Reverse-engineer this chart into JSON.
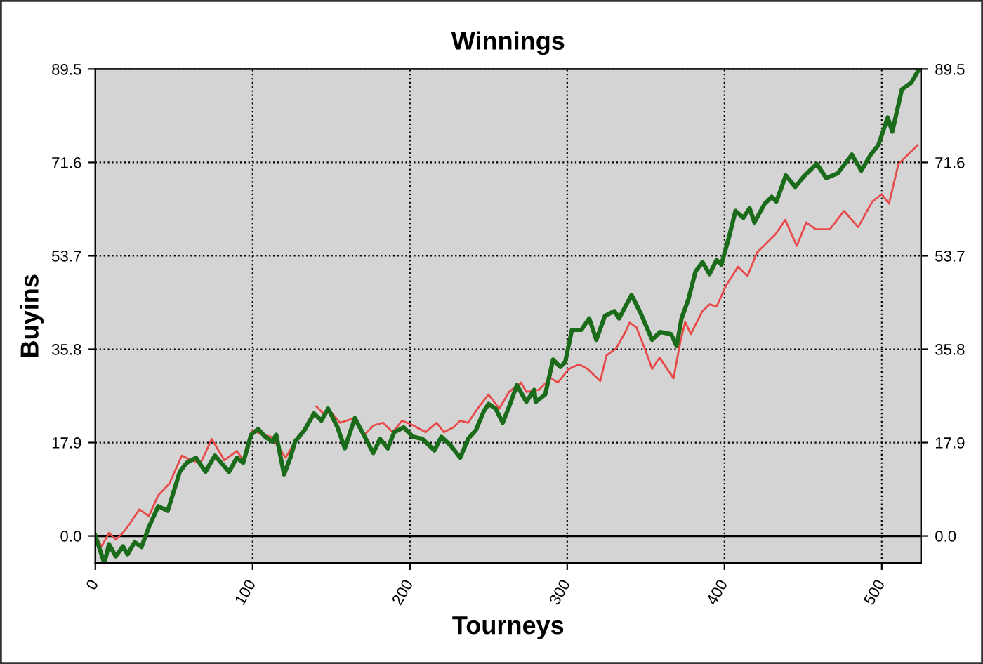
{
  "chart_data": {
    "type": "line",
    "title": "Winnings",
    "xlabel": "Tourneys",
    "ylabel": "Buyins",
    "xlim": [
      0,
      525
    ],
    "xticks": [
      0,
      100,
      200,
      300,
      400,
      500
    ],
    "ylim": [
      -5.2,
      89.5
    ],
    "yticks": [
      {
        "value": 0,
        "label": "0.0"
      },
      17.9,
      35.8,
      53.7,
      71.6,
      89.5
    ],
    "y2lim": [
      -5.2,
      89.5
    ],
    "y2ticks": [
      {
        "value": 0,
        "label": "0.0"
      },
      17.9,
      35.8,
      53.7,
      71.6,
      89.5
    ],
    "grid": true,
    "line_style": "solid",
    "marker": "none",
    "ref_lines": [
      {
        "axis": "y",
        "value": 0,
        "color": "#000000"
      }
    ],
    "series": [
      {
        "color": "#e84a4a",
        "x": [
          0,
          4,
          8.7,
          13,
          17.5,
          22,
          28,
          34,
          40,
          47,
          55,
          61,
          67,
          74,
          82,
          90,
          94,
          100,
          106,
          112,
          121,
          127,
          134.7,
          140.6,
          145,
          148,
          155.6,
          165,
          171,
          177,
          183,
          189,
          195,
          202,
          210,
          217,
          221.6,
          227.5,
          232,
          237,
          243,
          250,
          256.8,
          263,
          270.7,
          274,
          282,
          289.5,
          294,
          301,
          307.6,
          313,
          321,
          325,
          331,
          337,
          339.7,
          344,
          350,
          354,
          358.7,
          367.6,
          372,
          375,
          378.6,
          386,
          390.6,
          395,
          401,
          408.6,
          414.6,
          420.6,
          426.6,
          432.6,
          438.6,
          446,
          452,
          458,
          467,
          476,
          485,
          494,
          500,
          504.6,
          510.6,
          516.6,
          522.7
        ],
        "values": [
          0,
          -2,
          0.6,
          -0.7,
          0.6,
          2.4,
          5.1,
          3.8,
          7.8,
          10.0,
          15.4,
          14.5,
          14.0,
          18.6,
          14.5,
          16.3,
          14.5,
          20.3,
          19.4,
          19.0,
          15.0,
          18.1,
          null,
          24.8,
          23.5,
          24.4,
          21.7,
          22.6,
          19.4,
          21.2,
          21.7,
          19.9,
          22.1,
          21.2,
          19.9,
          21.7,
          19.9,
          20.8,
          22.1,
          21.7,
          24.4,
          27.1,
          24.4,
          27.6,
          29.4,
          27.6,
          28.0,
          30.3,
          29.4,
          32.0,
          32.9,
          32.0,
          29.7,
          34.6,
          35.9,
          39.1,
          40.9,
          40.0,
          35.4,
          32.0,
          34.2,
          30.2,
          37.3,
          41.0,
          38.7,
          43.1,
          44.4,
          44.0,
          48.0,
          51.6,
          49.8,
          54.3,
          56.1,
          57.9,
          60.6,
          55.6,
          60.1,
          58.8,
          58.8,
          62.3,
          59.2,
          64.1,
          65.5,
          63.7,
          71.3,
          73.1,
          74.9
        ]
      },
      {
        "color": "#1a6b1a",
        "x": [
          0,
          5.7,
          8.7,
          13,
          17.5,
          20.5,
          25,
          29.4,
          34,
          40,
          46,
          53.7,
          58,
          64,
          70,
          76,
          85,
          90,
          94,
          99,
          103.6,
          108,
          112.5,
          115,
          120,
          124,
          127,
          133,
          139,
          143.7,
          148,
          154,
          158.6,
          165,
          169,
          176.7,
          181,
          186,
          190,
          196,
          202,
          208,
          215.6,
          220,
          226,
          232,
          237,
          242,
          247,
          250,
          254.5,
          259,
          263.7,
          268,
          274,
          279,
          280,
          286,
          291,
          295.6,
          298.7,
          303,
          309,
          314,
          318.5,
          324,
          330,
          333,
          340.9,
          346.7,
          354,
          359,
          366,
          369.6,
          372.7,
          377,
          381.6,
          386,
          390.5,
          395,
          398,
          402.6,
          407,
          412,
          416,
          419,
          425.6,
          430,
          433,
          439,
          445,
          451,
          458.7,
          464.7,
          472,
          481,
          487,
          493,
          497.8,
          503.8,
          506.7,
          512.8,
          518.8,
          523
        ],
        "values": [
          0,
          -5.2,
          -1.6,
          -3.9,
          -2,
          -3.5,
          -1.2,
          -2.1,
          1.7,
          5.7,
          4.8,
          12.3,
          14.0,
          15.0,
          12.3,
          15.4,
          12.3,
          15.0,
          14.0,
          19.4,
          20.5,
          19.0,
          18.1,
          19.4,
          11.8,
          15.0,
          18.1,
          20.3,
          23.5,
          22.1,
          24.4,
          20.8,
          16.8,
          22.6,
          20.3,
          15.9,
          18.6,
          16.8,
          19.9,
          20.8,
          19.0,
          18.6,
          16.4,
          19.0,
          17.3,
          15.0,
          18.6,
          20.3,
          23.9,
          25.3,
          24.4,
          21.7,
          25.3,
          28.9,
          25.7,
          28.0,
          25.7,
          27.1,
          33.8,
          32.4,
          33.3,
          39.5,
          39.5,
          41.7,
          37.6,
          42.2,
          43.1,
          41.7,
          46.2,
          42.7,
          37.6,
          39.1,
          38.7,
          36.4,
          41.7,
          45.3,
          50.7,
          52.5,
          50.2,
          52.9,
          52.0,
          57.0,
          62.3,
          61.0,
          62.8,
          60.1,
          63.7,
          65.0,
          64.1,
          69.1,
          66.9,
          69.1,
          71.3,
          68.6,
          69.5,
          73.1,
          70.0,
          73.1,
          74.9,
          80.2,
          77.5,
          85.6,
          86.9,
          89.1
        ]
      }
    ]
  }
}
